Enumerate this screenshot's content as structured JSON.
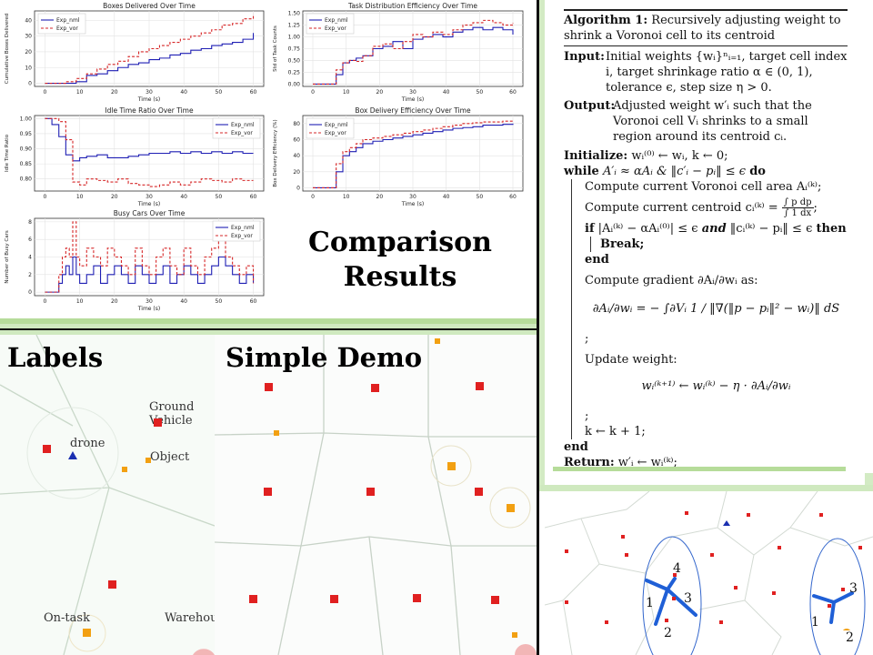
{
  "charts": {
    "boxes": {
      "title": "Boxes Delivered Over Time",
      "xlabel": "Time (s)",
      "ylabel": "Cumulative Boxes Delivered",
      "legend": [
        "Exp_nml",
        "Exp_vor"
      ],
      "xticks": [
        "0",
        "10",
        "20",
        "30",
        "40",
        "50",
        "60"
      ],
      "yticks": [
        "0",
        "10",
        "20",
        "30",
        "40"
      ]
    },
    "task": {
      "title": "Task Distribution Efficiency Over Time",
      "xlabel": "Time (s)",
      "ylabel": "Std of Task Counts",
      "legend": [
        "Exp_nml",
        "Exp_vor"
      ],
      "xticks": [
        "0",
        "10",
        "20",
        "30",
        "40",
        "50",
        "60"
      ],
      "yticks": [
        "0.00",
        "0.25",
        "0.50",
        "0.75",
        "1.00",
        "1.25",
        "1.50"
      ]
    },
    "idle": {
      "title": "Idle Time Ratio Over Time",
      "xlabel": "Time (s)",
      "ylabel": "Idle Time Ratio",
      "legend": [
        "Exp_nml",
        "Exp_vor"
      ],
      "xticks": [
        "0",
        "10",
        "20",
        "30",
        "40",
        "50",
        "60"
      ],
      "yticks": [
        "0.80",
        "0.85",
        "0.90",
        "0.95",
        "1.00"
      ]
    },
    "delivery": {
      "title": "Box Delivery Efficiency Over Time",
      "xlabel": "Time (s)",
      "ylabel": "Box Delivery Efficiency (%)",
      "legend": [
        "Exp_nml",
        "Exp_vor"
      ],
      "xticks": [
        "0",
        "10",
        "20",
        "30",
        "40",
        "50",
        "60"
      ],
      "yticks": [
        "0",
        "20",
        "40",
        "60",
        "80"
      ]
    },
    "busy": {
      "title": "Busy Cars Over Time",
      "xlabel": "Time (s)",
      "ylabel": "Number of Busy Cars",
      "legend": [
        "Exp_nml",
        "Exp_vor"
      ],
      "xticks": [
        "0",
        "10",
        "20",
        "30",
        "40",
        "50",
        "60"
      ],
      "yticks": [
        "0",
        "2",
        "4",
        "6",
        "8"
      ]
    }
  },
  "chart_data": [
    {
      "type": "line",
      "title": "Boxes Delivered Over Time",
      "xlabel": "Time (s)",
      "ylabel": "Cumulative Boxes Delivered",
      "xlim": [
        -3,
        63
      ],
      "ylim": [
        -2,
        46
      ],
      "x": [
        0,
        3,
        6,
        9,
        12,
        15,
        18,
        21,
        24,
        27,
        30,
        33,
        36,
        39,
        42,
        45,
        48,
        51,
        54,
        57,
        60
      ],
      "series": [
        {
          "name": "Exp_nml",
          "color": "#1f1fb4",
          "values": [
            0,
            0,
            0,
            1,
            5,
            6,
            8,
            10,
            12,
            13,
            15,
            16,
            18,
            19,
            21,
            22,
            24,
            25,
            26,
            28,
            32
          ]
        },
        {
          "name": "Exp_vor",
          "color": "#d62728",
          "values": [
            0,
            0,
            1,
            3,
            6,
            9,
            12,
            14,
            17,
            20,
            22,
            24,
            26,
            28,
            30,
            32,
            34,
            37,
            38,
            41,
            44
          ]
        }
      ],
      "legend_position": "upper-left",
      "grid": true
    },
    {
      "type": "line",
      "title": "Task Distribution Efficiency Over Time",
      "xlabel": "Time (s)",
      "ylabel": "Std of Task Counts",
      "xlim": [
        -3,
        63
      ],
      "ylim": [
        -0.05,
        1.55
      ],
      "x": [
        0,
        5,
        7,
        9,
        11,
        13,
        15,
        18,
        21,
        24,
        27,
        30,
        33,
        36,
        39,
        42,
        45,
        48,
        51,
        54,
        57,
        60
      ],
      "series": [
        {
          "name": "Exp_nml",
          "color": "#1f1fb4",
          "values": [
            0,
            0,
            0.2,
            0.45,
            0.5,
            0.55,
            0.6,
            0.75,
            0.8,
            0.9,
            0.75,
            0.95,
            1.0,
            1.05,
            1.0,
            1.1,
            1.15,
            1.2,
            1.15,
            1.2,
            1.15,
            1.05
          ]
        },
        {
          "name": "Exp_vor",
          "color": "#d62728",
          "values": [
            0,
            0,
            0.3,
            0.45,
            0.5,
            0.48,
            0.6,
            0.8,
            0.85,
            0.75,
            0.9,
            1.05,
            1.0,
            1.1,
            1.05,
            1.15,
            1.25,
            1.3,
            1.35,
            1.3,
            1.25,
            1.3
          ]
        }
      ],
      "legend_position": "upper-left",
      "grid": true
    },
    {
      "type": "line",
      "title": "Idle Time Ratio Over Time",
      "xlabel": "Time (s)",
      "ylabel": "Idle Time Ratio",
      "xlim": [
        -3,
        63
      ],
      "ylim": [
        0.76,
        1.01
      ],
      "x": [
        0,
        2,
        4,
        6,
        8,
        10,
        12,
        15,
        18,
        21,
        24,
        27,
        30,
        33,
        36,
        39,
        42,
        45,
        48,
        51,
        54,
        57,
        60
      ],
      "series": [
        {
          "name": "Exp_nml",
          "color": "#1f1fb4",
          "values": [
            1.0,
            0.98,
            0.94,
            0.88,
            0.86,
            0.87,
            0.875,
            0.88,
            0.87,
            0.87,
            0.875,
            0.88,
            0.885,
            0.885,
            0.89,
            0.885,
            0.89,
            0.885,
            0.89,
            0.885,
            0.89,
            0.885,
            0.885
          ]
        },
        {
          "name": "Exp_vor",
          "color": "#d62728",
          "values": [
            1.0,
            1.0,
            0.99,
            0.93,
            0.79,
            0.78,
            0.8,
            0.795,
            0.79,
            0.8,
            0.785,
            0.78,
            0.775,
            0.78,
            0.79,
            0.78,
            0.79,
            0.8,
            0.795,
            0.79,
            0.8,
            0.795,
            0.795
          ]
        }
      ],
      "legend_position": "upper-right",
      "grid": true
    },
    {
      "type": "line",
      "title": "Box Delivery Efficiency Over Time",
      "xlabel": "Time (s)",
      "ylabel": "Box Delivery Efficiency (%)",
      "xlim": [
        -3,
        63
      ],
      "ylim": [
        -4,
        90
      ],
      "x": [
        0,
        3,
        5,
        7,
        9,
        11,
        13,
        15,
        18,
        21,
        24,
        27,
        30,
        33,
        36,
        39,
        42,
        45,
        48,
        51,
        54,
        57,
        60
      ],
      "series": [
        {
          "name": "Exp_nml",
          "color": "#1f1fb4",
          "values": [
            0,
            0,
            0,
            20,
            40,
            45,
            50,
            55,
            58,
            60,
            62,
            64,
            66,
            68,
            70,
            72,
            74,
            75,
            76,
            78,
            78,
            79,
            80
          ]
        },
        {
          "name": "Exp_vor",
          "color": "#d62728",
          "values": [
            0,
            0,
            0,
            30,
            45,
            50,
            55,
            60,
            62,
            64,
            66,
            68,
            70,
            72,
            74,
            76,
            78,
            80,
            81,
            82,
            82,
            83,
            83
          ]
        }
      ],
      "legend_position": "upper-left",
      "grid": true
    },
    {
      "type": "line",
      "title": "Busy Cars Over Time",
      "xlabel": "Time (s)",
      "ylabel": "Number of Busy Cars",
      "xlim": [
        -3,
        63
      ],
      "ylim": [
        -0.4,
        8.4
      ],
      "x": [
        0,
        2,
        4,
        5,
        6,
        7,
        8,
        9,
        10,
        12,
        14,
        16,
        18,
        20,
        22,
        24,
        26,
        28,
        30,
        32,
        34,
        36,
        38,
        40,
        42,
        44,
        46,
        48,
        50,
        52,
        54,
        56,
        58,
        60
      ],
      "series": [
        {
          "name": "Exp_nml",
          "color": "#1f1fb4",
          "values": [
            0,
            0,
            1,
            2,
            3,
            2,
            4,
            2,
            1,
            2,
            3,
            1,
            2,
            3,
            2,
            1,
            3,
            2,
            1,
            2,
            3,
            1,
            2,
            3,
            2,
            1,
            2,
            3,
            4,
            3,
            2,
            1,
            2,
            1
          ]
        },
        {
          "name": "Exp_vor",
          "color": "#d62728",
          "values": [
            0,
            0,
            2,
            4,
            5,
            4,
            8,
            4,
            3,
            5,
            4,
            3,
            5,
            4,
            3,
            2,
            5,
            3,
            2,
            4,
            5,
            3,
            2,
            5,
            3,
            2,
            4,
            5,
            6,
            4,
            3,
            2,
            3,
            1
          ]
        }
      ],
      "legend_position": "upper-right",
      "grid": true
    }
  ],
  "comparison_title": [
    "Comparison",
    "Results"
  ],
  "algorithm": {
    "title": "Algorithm 1:",
    "title_rest": "Recursively adjusting weight to shrink a Voronoi cell to its centroid",
    "input_label": "Input:",
    "input_text": "Initial weights {wᵢ}ⁿᵢ₌₁, target cell index i, target shrinkage ratio α ∈ (0, 1), tolerance ϵ, step size η > 0.",
    "output_label": "Output:",
    "output_text": "Adjusted weight w′ᵢ such that the Voronoi cell Vᵢ shrinks to a small region around its centroid cᵢ.",
    "init_label": "Initialize:",
    "init_text": "wᵢ⁽⁰⁾ ← wᵢ, k ← 0;",
    "while_label": "while",
    "while_text": "A′ᵢ ≈ αAᵢ  &  ‖c′ᵢ − pᵢ‖ ≤ ϵ",
    "do_label": "do",
    "step_area": "Compute current Voronoi cell area Aᵢ⁽ᵏ⁾;",
    "step_centroid_pre": "Compute current centroid cᵢ⁽ᵏ⁾ =",
    "centroid_num": "∫ p dp",
    "centroid_den": "∫ 1 dx",
    "if_label": "if",
    "if_text": "|Aᵢ⁽ᵏ⁾ − αAᵢ⁽⁰⁾| ≤ ϵ",
    "and_label": "and",
    "if_text2": "‖cᵢ⁽ᵏ⁾ − pᵢ‖ ≤ ϵ",
    "then_label": "then",
    "break_label": "Break;",
    "end_label": "end",
    "gradient_pre": "Compute gradient ∂Aᵢ/∂wᵢ as:",
    "gradient_eq": "∂Aᵢ/∂wᵢ = − ∫∂Vᵢ 1 / ‖∇(‖p − pᵢ‖² − wᵢ)‖ dS",
    "semicolon": ";",
    "update_label": "Update weight:",
    "update_eq": "wᵢ⁽ᵏ⁺¹⁾ ← wᵢ⁽ᵏ⁾ − η · ∂Aᵢ/∂wᵢ",
    "k_inc": "k ← k + 1;",
    "end_while": "end",
    "return_label": "Return:",
    "return_text": "w′ᵢ ← wᵢ⁽ᵏ⁾;"
  },
  "labels_panel": {
    "heading": "Labels",
    "ground_vehicle": "Ground Vehicle",
    "drone": "drone",
    "object": "Object",
    "on_task": "On-task",
    "warehouse": "Warehouse"
  },
  "demo_panel": {
    "heading": "Simple Demo"
  },
  "weight_demo": {
    "left_numbers": [
      "4",
      "1",
      "3",
      "2"
    ],
    "right_numbers": [
      "3",
      "1",
      "2"
    ]
  },
  "colors": {
    "nml": "#1f1fb4",
    "vor": "#d62728",
    "vehicle": "#e02020",
    "box": "#f2a012",
    "drone": "#1a2fb0",
    "accent_green": "#b6dc9a"
  }
}
